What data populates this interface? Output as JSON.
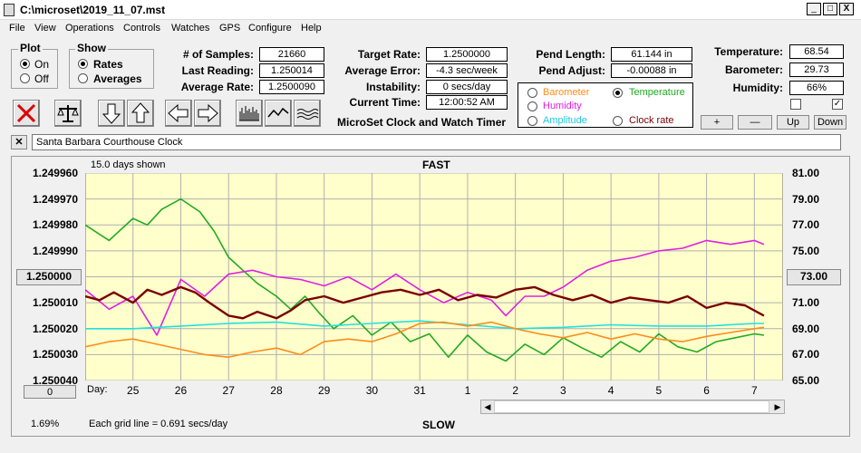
{
  "window": {
    "title": "C:\\microset\\2019_11_07.mst",
    "min": "_",
    "max": "□",
    "close": "X"
  },
  "menu": [
    "File",
    "View",
    "Operations",
    "Controls",
    "Watches",
    "GPS",
    "Configure",
    "Help"
  ],
  "plot": {
    "label": "Plot",
    "on": "On",
    "off": "Off"
  },
  "show": {
    "label": "Show",
    "rates": "Rates",
    "averages": "Averages"
  },
  "stats": {
    "samples_label": "# of Samples:",
    "samples": "21660",
    "last_label": "Last Reading:",
    "last": "1.250014",
    "avg_rate_label": "Average Rate:",
    "avg_rate": "1.2500090"
  },
  "target": {
    "rate_label": "Target Rate:",
    "rate": "1.2500000",
    "avg_err_label": "Average Error:",
    "avg_err": "-4.3 sec/week",
    "instab_label": "Instability:",
    "instab": "0 secs/day",
    "time_label": "Current Time:",
    "time": "12:00:52 AM"
  },
  "app_name": "MicroSet Clock and Watch Timer",
  "pend": {
    "length_label": "Pend Length:",
    "length": "61.144 in",
    "adjust_label": "Pend Adjust:",
    "adjust": "-0.00088 in"
  },
  "series_select": {
    "barometer": "Barometer",
    "temperature": "Temperature",
    "humidity": "Humidity",
    "amplitude": "Amplitude",
    "clock_rate": "Clock rate"
  },
  "env": {
    "temp_label": "Temperature:",
    "temp": "68.54",
    "baro_label": "Barometer:",
    "baro": "29.73",
    "hum_label": "Humidity:",
    "hum": "66%"
  },
  "checks": {
    "right": "✓"
  },
  "env_buttons": {
    "plus": "+",
    "minus": "—",
    "up": "Up",
    "down": "Down"
  },
  "clock_name": "Santa Barbara Courthouse Clock",
  "clear_btn": "✕",
  "graph": {
    "days_shown": "15.0 days shown",
    "fast": "FAST",
    "slow": "SLOW",
    "day_label": "Day:",
    "grid_note": "Each grid line = 0.691 secs/day",
    "left_value": "1.250000",
    "right_value": "73.00",
    "zero_btn": "0",
    "percent": "1.69%"
  },
  "chart_data": {
    "type": "line",
    "y_left_ticks": [
      "1.249960",
      "1.249970",
      "1.249980",
      "1.249990",
      "1.250000",
      "1.250010",
      "1.250020",
      "1.250030",
      "1.250040"
    ],
    "y_right_ticks": [
      "81.00",
      "79.00",
      "77.00",
      "75.00",
      "73.00",
      "71.00",
      "69.00",
      "67.00",
      "65.00"
    ],
    "x_ticks": [
      "25",
      "26",
      "27",
      "28",
      "29",
      "30",
      "31",
      "1",
      "2",
      "3",
      "4",
      "5",
      "6",
      "7"
    ],
    "colors": {
      "temperature": "#22aa22",
      "humidity": "#e020e0",
      "amplitude": "#20e0e0",
      "barometer": "#ff8c1a",
      "clock_rate": "#7a0000",
      "plot_bg": "#ffffcc",
      "grid": "#b0b0b0"
    },
    "series": [
      {
        "name": "Temperature",
        "key": "temperature",
        "x": [
          24.0,
          24.5,
          25.0,
          25.3,
          25.6,
          26.0,
          26.4,
          26.7,
          27.0,
          27.3,
          27.6,
          28.0,
          28.3,
          28.6,
          28.9,
          29.2,
          29.6,
          30.0,
          30.4,
          30.8,
          31.2,
          31.6,
          32.0,
          32.4,
          32.8,
          33.2,
          33.6,
          34.0,
          34.4,
          34.8,
          35.2,
          35.6,
          36.0,
          36.4,
          36.8,
          37.2,
          37.6,
          38.0,
          38.2
        ],
        "y": [
          77.0,
          75.8,
          77.5,
          77.0,
          78.2,
          79.0,
          78.0,
          76.5,
          74.5,
          73.5,
          72.5,
          71.5,
          70.5,
          71.5,
          70.2,
          69.0,
          70.0,
          68.5,
          69.5,
          68.0,
          68.6,
          66.8,
          68.5,
          67.2,
          66.5,
          67.8,
          67.0,
          68.3,
          67.5,
          66.8,
          68.0,
          67.2,
          68.6,
          67.6,
          67.2,
          68.0,
          68.3,
          68.6,
          68.5
        ]
      },
      {
        "name": "Humidity",
        "key": "humidity",
        "x": [
          24.0,
          24.5,
          25.0,
          25.5,
          26.0,
          26.5,
          27.0,
          27.5,
          28.0,
          28.5,
          29.0,
          29.5,
          30.0,
          30.5,
          31.0,
          31.5,
          32.0,
          32.5,
          32.8,
          33.2,
          33.6,
          34.0,
          34.5,
          35.0,
          35.5,
          36.0,
          36.5,
          37.0,
          37.5,
          38.0,
          38.2
        ],
        "y": [
          72.0,
          70.5,
          71.5,
          68.5,
          72.8,
          71.5,
          73.2,
          73.5,
          73.0,
          72.8,
          72.3,
          73.0,
          72.0,
          73.2,
          72.0,
          71.0,
          71.8,
          71.2,
          70.0,
          71.5,
          71.5,
          72.2,
          73.5,
          74.2,
          74.5,
          75.0,
          75.2,
          75.8,
          75.5,
          75.8,
          75.5
        ]
      },
      {
        "name": "Amplitude",
        "key": "amplitude",
        "x": [
          24.0,
          25.0,
          26.0,
          27.0,
          28.0,
          29.0,
          30.0,
          31.0,
          32.0,
          33.0,
          34.0,
          35.0,
          36.0,
          37.0,
          38.0,
          38.2
        ],
        "y": [
          69.0,
          69.0,
          69.2,
          69.4,
          69.5,
          69.2,
          69.4,
          69.6,
          69.3,
          69.0,
          69.1,
          69.3,
          69.2,
          69.2,
          69.4,
          69.4
        ]
      },
      {
        "name": "Barometer",
        "key": "barometer",
        "x": [
          24.0,
          24.5,
          25.0,
          25.5,
          26.0,
          26.5,
          27.0,
          27.5,
          28.0,
          28.5,
          29.0,
          29.5,
          30.0,
          30.5,
          31.0,
          31.5,
          32.0,
          32.5,
          33.0,
          33.5,
          34.0,
          34.5,
          35.0,
          35.5,
          36.0,
          36.5,
          37.0,
          37.5,
          38.0,
          38.2
        ],
        "y": [
          67.6,
          68.0,
          68.2,
          67.8,
          67.4,
          67.0,
          66.8,
          67.2,
          67.5,
          67.0,
          68.0,
          68.2,
          68.0,
          68.6,
          69.4,
          69.5,
          69.2,
          69.5,
          69.0,
          68.6,
          68.3,
          68.7,
          68.2,
          68.6,
          68.2,
          68.0,
          68.4,
          68.7,
          69.0,
          69.1
        ]
      },
      {
        "name": "Clock rate",
        "key": "clock_rate",
        "x": [
          24.0,
          24.3,
          24.6,
          25.0,
          25.3,
          25.6,
          26.0,
          26.3,
          26.6,
          27.0,
          27.3,
          27.6,
          28.0,
          28.3,
          28.6,
          29.0,
          29.4,
          29.8,
          30.2,
          30.6,
          31.0,
          31.4,
          31.8,
          32.2,
          32.6,
          33.0,
          33.4,
          33.8,
          34.2,
          34.6,
          35.0,
          35.4,
          35.8,
          36.2,
          36.6,
          37.0,
          37.4,
          37.8,
          38.2
        ],
        "y": [
          71.5,
          71.2,
          71.8,
          71.0,
          72.0,
          71.6,
          72.2,
          71.8,
          71.0,
          70.0,
          69.8,
          70.3,
          69.8,
          70.4,
          71.2,
          71.5,
          71.0,
          71.4,
          71.8,
          72.0,
          71.6,
          72.0,
          71.2,
          71.6,
          71.4,
          72.0,
          72.2,
          71.6,
          71.2,
          71.6,
          71.0,
          71.4,
          71.2,
          71.0,
          71.5,
          70.6,
          71.0,
          70.8,
          70.0
        ]
      }
    ],
    "x_range": [
      24.0,
      38.6
    ],
    "y_range": [
      65.0,
      81.0
    ]
  }
}
